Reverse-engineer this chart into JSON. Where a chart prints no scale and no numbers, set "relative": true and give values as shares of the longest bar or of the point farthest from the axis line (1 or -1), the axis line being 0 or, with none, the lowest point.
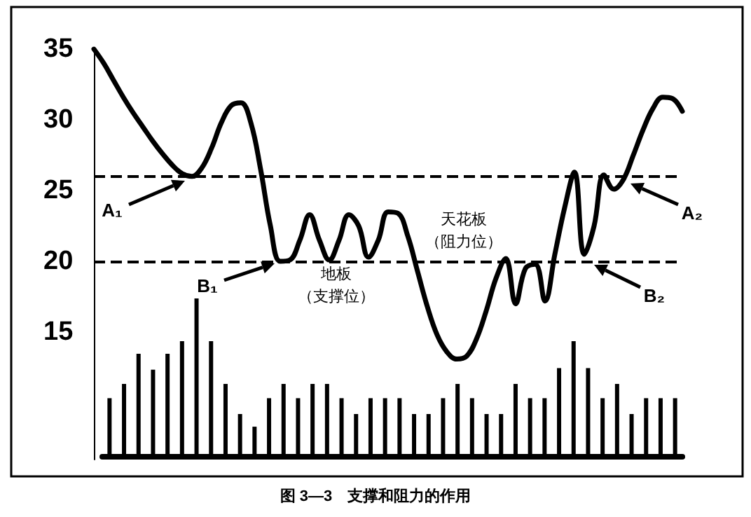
{
  "chart_data": [
    {
      "type": "line",
      "title": "图 3—3　支撑和阻力的作用",
      "categories": [
        null,
        null,
        null,
        null,
        null,
        null,
        null,
        null,
        null,
        null,
        null,
        null,
        null,
        null,
        null,
        null,
        null,
        null,
        null,
        null,
        null,
        null,
        null,
        null,
        null,
        null,
        null,
        null,
        null,
        null,
        null,
        null,
        null,
        null,
        null,
        null,
        null,
        null,
        null,
        null,
        null,
        null,
        null,
        null,
        null,
        null,
        null,
        null,
        null,
        null,
        null,
        null,
        null,
        null,
        null,
        null,
        null,
        null,
        null,
        null,
        null
      ],
      "series": [
        {
          "color": "#000000",
          "values": [
            35.0,
            34.0,
            32.8,
            31.6,
            30.5,
            29.5,
            28.5,
            27.6,
            26.8,
            26.2,
            26.0,
            26.6,
            28.0,
            29.8,
            31.0,
            31.2,
            29.8,
            26.5,
            22.5,
            20.0,
            20.1,
            21.5,
            23.3,
            21.5,
            20.1,
            21.5,
            23.3,
            22.5,
            20.3,
            21.5,
            23.5,
            23.4,
            21.8,
            19.3,
            16.8,
            14.8,
            13.6,
            13.1,
            13.3,
            14.5,
            16.5,
            18.8,
            20.2,
            17.0,
            19.5,
            19.8,
            17.2,
            20.5,
            23.8,
            26.3,
            20.5,
            22.5,
            26.1,
            25.1,
            25.8,
            27.5,
            29.3,
            30.8,
            31.6,
            31.5,
            30.6
          ]
        }
      ],
      "ylim": [
        6,
        35
      ],
      "yticks": [
        15,
        20,
        25,
        30,
        35
      ],
      "tick_labels": "y",
      "grid": false,
      "line_style": "solid",
      "ref_lines": [
        {
          "axis": "y",
          "value": 26,
          "line_style": "dashed",
          "color": "#000000"
        },
        {
          "axis": "y",
          "value": 20,
          "line_style": "dashed",
          "color": "#000000"
        }
      ],
      "annotations": [
        "A₁",
        "B₁",
        "地板",
        "（支撑位）",
        "天花板",
        "（阻力位）",
        "A₂",
        "B₂"
      ]
    },
    {
      "type": "bar",
      "relative": true,
      "tick_labels": false,
      "color": "#000000",
      "grid": false,
      "categories": [
        null,
        null,
        null,
        null,
        null,
        null,
        null,
        null,
        null,
        null,
        null,
        null,
        null,
        null,
        null,
        null,
        null,
        null,
        null,
        null,
        null,
        null,
        null,
        null,
        null,
        null,
        null,
        null,
        null,
        null,
        null,
        null,
        null,
        null,
        null,
        null,
        null,
        null,
        null,
        null
      ],
      "values": [
        0.37,
        0.46,
        0.65,
        0.55,
        0.65,
        0.73,
        1,
        0.73,
        0.46,
        0.27,
        0.19,
        0.37,
        0.46,
        0.37,
        0.46,
        0.46,
        0.37,
        0.27,
        0.37,
        0.37,
        0.37,
        0.27,
        0.27,
        0.37,
        0.46,
        0.37,
        0.27,
        0.27,
        0.46,
        0.37,
        0.37,
        0.56,
        0.73,
        0.56,
        0.37,
        0.46,
        0.27,
        0.37,
        0.37,
        0.37
      ]
    }
  ]
}
